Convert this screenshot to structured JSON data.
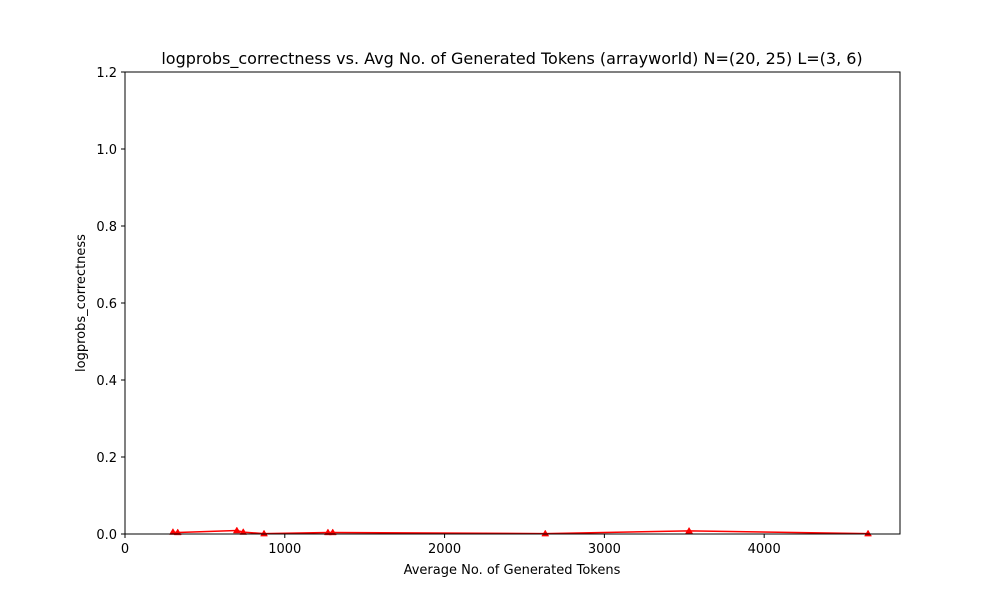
{
  "chart_data": {
    "type": "line",
    "title": "logprobs_correctness vs. Avg No. of Generated Tokens (arrayworld) N=(20, 25) L=(3, 6)",
    "xlabel": "Average No. of Generated Tokens",
    "ylabel": "logprobs_correctness",
    "xlim": [
      0,
      4850
    ],
    "ylim": [
      0,
      1.2
    ],
    "xticks": [
      0,
      1000,
      2000,
      3000,
      4000
    ],
    "yticks": [
      0.0,
      0.2,
      0.4,
      0.6,
      0.8,
      1.0,
      1.2
    ],
    "xtick_labels": [
      "0",
      "1000",
      "2000",
      "3000",
      "4000"
    ],
    "ytick_labels": [
      "0.0",
      "0.2",
      "0.4",
      "0.6",
      "0.8",
      "1.0",
      "1.2"
    ],
    "grid": false,
    "series": [
      {
        "color": "#ff0000",
        "marker": "triangle",
        "x": [
          300,
          330,
          700,
          740,
          870,
          1270,
          1300,
          2630,
          3530,
          4650
        ],
        "y": [
          0.005,
          0.004,
          0.009,
          0.005,
          0.001,
          0.004,
          0.004,
          0.001,
          0.008,
          0.001
        ]
      }
    ]
  }
}
